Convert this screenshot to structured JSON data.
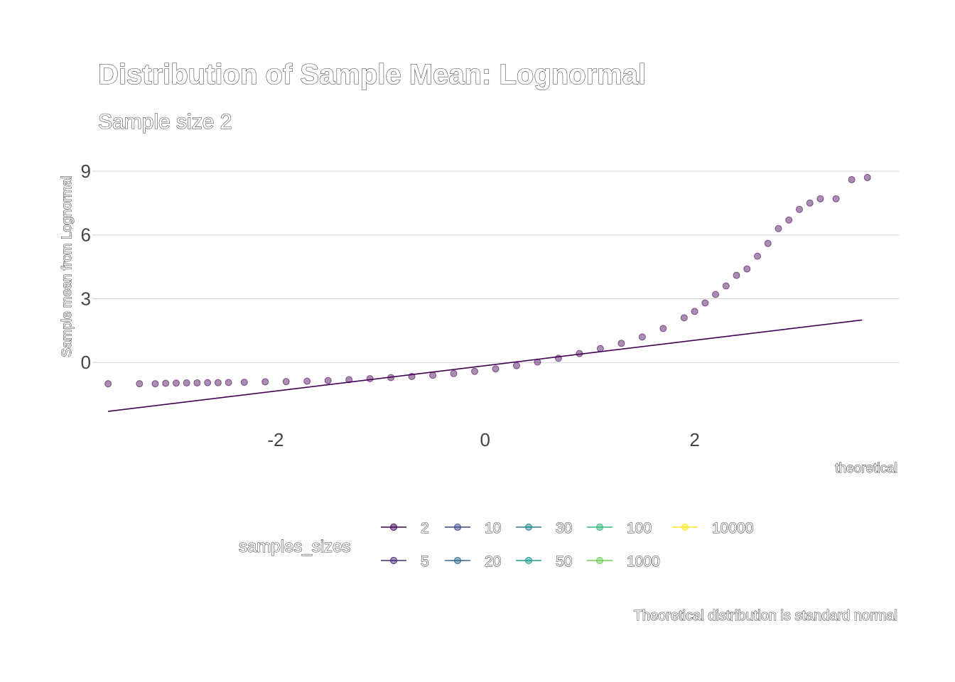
{
  "chart_data": {
    "type": "scatter",
    "title": "Distribution of Sample Mean: Lognormal",
    "subtitle": "Sample size 2",
    "xlabel": "theoretical",
    "ylabel": "Sample mean from Lognormal",
    "caption": "Theoretical distribution is standard normal",
    "xlim": [
      -3.75,
      3.95
    ],
    "ylim": [
      -3.0,
      9.7
    ],
    "x_ticks": [
      -2,
      0,
      2
    ],
    "x_tick_labels": [
      "-2",
      "0",
      "2"
    ],
    "y_ticks": [
      0,
      3,
      6,
      9
    ],
    "y_tick_labels": [
      "0",
      "3",
      "6",
      "9"
    ],
    "grid": "horizontal",
    "legend": {
      "title": "samples_sizes",
      "position": "bottom",
      "entries": [
        {
          "label": "2",
          "color": "#440154"
        },
        {
          "label": "5",
          "color": "#482878"
        },
        {
          "label": "10",
          "color": "#3e4a89"
        },
        {
          "label": "20",
          "color": "#31688e"
        },
        {
          "label": "30",
          "color": "#26828e"
        },
        {
          "label": "50",
          "color": "#1f9e89"
        },
        {
          "label": "100",
          "color": "#35b779"
        },
        {
          "label": "1000",
          "color": "#6ece58"
        },
        {
          "label": "10000",
          "color": "#fde725"
        }
      ]
    },
    "series": [
      {
        "name": "2",
        "color": "#440154",
        "reference_line": [
          [
            -3.6,
            -2.3
          ],
          [
            3.6,
            2.0
          ]
        ],
        "points": [
          [
            -3.6,
            -1.0
          ],
          [
            -3.3,
            -1.0
          ],
          [
            -3.15,
            -1.0
          ],
          [
            -3.05,
            -0.98
          ],
          [
            -2.95,
            -0.97
          ],
          [
            -2.85,
            -0.96
          ],
          [
            -2.75,
            -0.96
          ],
          [
            -2.65,
            -0.95
          ],
          [
            -2.55,
            -0.95
          ],
          [
            -2.45,
            -0.94
          ],
          [
            -2.3,
            -0.93
          ],
          [
            -2.1,
            -0.91
          ],
          [
            -1.9,
            -0.9
          ],
          [
            -1.7,
            -0.88
          ],
          [
            -1.5,
            -0.85
          ],
          [
            -1.3,
            -0.81
          ],
          [
            -1.1,
            -0.76
          ],
          [
            -0.9,
            -0.71
          ],
          [
            -0.7,
            -0.66
          ],
          [
            -0.5,
            -0.6
          ],
          [
            -0.3,
            -0.52
          ],
          [
            -0.1,
            -0.42
          ],
          [
            0.1,
            -0.3
          ],
          [
            0.3,
            -0.15
          ],
          [
            0.5,
            0.02
          ],
          [
            0.7,
            0.2
          ],
          [
            0.9,
            0.42
          ],
          [
            1.1,
            0.65
          ],
          [
            1.3,
            0.9
          ],
          [
            1.5,
            1.2
          ],
          [
            1.7,
            1.6
          ],
          [
            1.9,
            2.1
          ],
          [
            2.0,
            2.4
          ],
          [
            2.1,
            2.8
          ],
          [
            2.2,
            3.2
          ],
          [
            2.3,
            3.6
          ],
          [
            2.4,
            4.1
          ],
          [
            2.5,
            4.4
          ],
          [
            2.6,
            5.0
          ],
          [
            2.7,
            5.6
          ],
          [
            2.8,
            6.3
          ],
          [
            2.9,
            6.7
          ],
          [
            3.0,
            7.2
          ],
          [
            3.1,
            7.5
          ],
          [
            3.2,
            7.7
          ],
          [
            3.35,
            7.7
          ],
          [
            3.5,
            8.6
          ],
          [
            3.65,
            8.7
          ]
        ]
      }
    ]
  }
}
